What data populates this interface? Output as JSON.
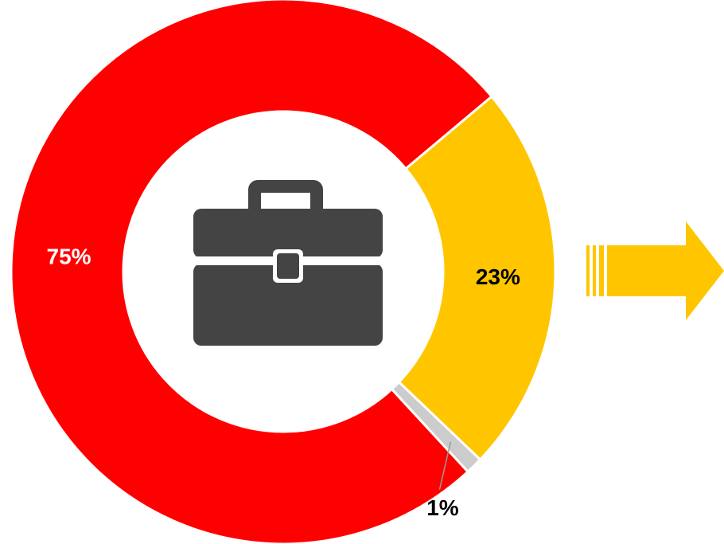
{
  "chart_data": {
    "type": "donut",
    "values": [
      23,
      1,
      75
    ],
    "value_labels": [
      "23%",
      "1%",
      "75%"
    ],
    "colors": [
      "#ffc600",
      "#cccccc",
      "#ff0000"
    ]
  }
}
